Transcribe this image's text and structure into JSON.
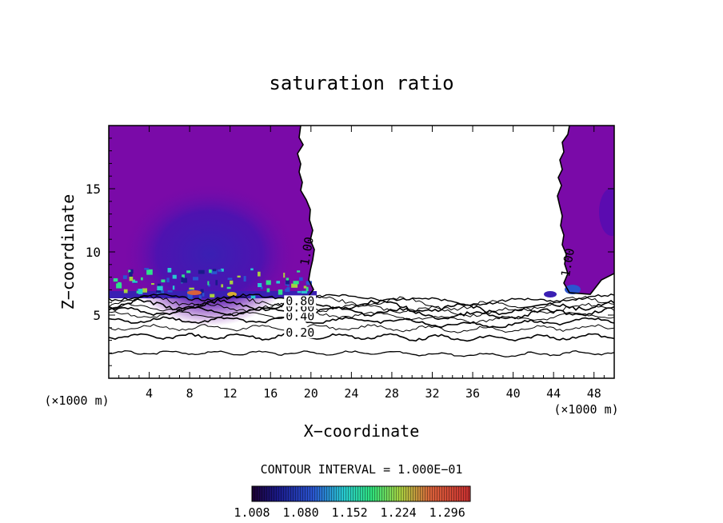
{
  "chart_data": {
    "type": "heatmap",
    "title": "saturation ratio",
    "xlabel": "X−coordinate",
    "ylabel": "Z−coordinate",
    "x_unit_left": "(×1000 m)",
    "x_unit_right": "(×1000 m)",
    "xlim": [
      0,
      50
    ],
    "ylim": [
      0,
      20
    ],
    "x_ticks": [
      4,
      8,
      12,
      16,
      20,
      24,
      28,
      32,
      36,
      40,
      44,
      48
    ],
    "y_ticks": [
      5,
      10,
      15
    ],
    "contour_interval_label": "CONTOUR INTERVAL = 1.000E−01",
    "contour_levels": [
      0.2,
      0.4,
      0.6,
      0.8,
      1.0
    ],
    "contour_labels": [
      {
        "text": "0.20",
        "x": 17.5,
        "y": 3.3
      },
      {
        "text": "0.40",
        "x": 17.5,
        "y": 4.6
      },
      {
        "text": "0.60",
        "x": 17.5,
        "y": 5.3
      },
      {
        "text": "0.80",
        "x": 17.5,
        "y": 5.8
      },
      {
        "text": "1.00",
        "x": 20.0,
        "y": 10.0,
        "rotated": true
      },
      {
        "text": "1.00",
        "x": 45.8,
        "y": 9.1,
        "rotated": true
      }
    ],
    "colorbar": {
      "min": 1.008,
      "max": 1.33,
      "tick_labels": [
        "1.008",
        "1.080",
        "1.152",
        "1.224",
        "1.296"
      ]
    },
    "grid": false
  },
  "colors": {
    "supersaturated_fill": "#7a0aa8",
    "inner_fill": "#5b0bb0",
    "core_fill": "#3c1fb0",
    "hot_fill": "#2fe08a",
    "contour_line": "#000000"
  }
}
